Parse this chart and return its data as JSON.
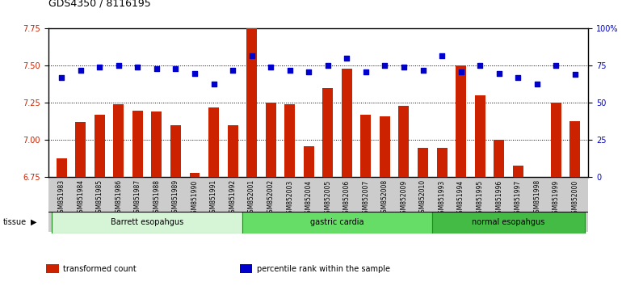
{
  "title": "GDS4350 / 8116195",
  "samples": [
    "GSM851983",
    "GSM851984",
    "GSM851985",
    "GSM851986",
    "GSM851987",
    "GSM851988",
    "GSM851989",
    "GSM851990",
    "GSM851991",
    "GSM851992",
    "GSM852001",
    "GSM852002",
    "GSM852003",
    "GSM852004",
    "GSM852005",
    "GSM852006",
    "GSM852007",
    "GSM852008",
    "GSM852009",
    "GSM852010",
    "GSM851993",
    "GSM851994",
    "GSM851995",
    "GSM851996",
    "GSM851997",
    "GSM851998",
    "GSM851999",
    "GSM852000"
  ],
  "transformed_counts": [
    6.88,
    7.12,
    7.17,
    7.24,
    7.2,
    7.19,
    7.1,
    6.78,
    7.22,
    7.1,
    7.75,
    7.25,
    7.24,
    6.96,
    7.35,
    7.48,
    7.17,
    7.16,
    7.23,
    6.95,
    6.95,
    7.5,
    7.3,
    7.0,
    6.83,
    6.75,
    7.25,
    7.13
  ],
  "percentile_ranks": [
    67,
    72,
    74,
    75,
    74,
    73,
    73,
    70,
    63,
    72,
    82,
    74,
    72,
    71,
    75,
    80,
    71,
    75,
    74,
    72,
    82,
    71,
    75,
    70,
    67,
    63,
    75,
    69
  ],
  "groups": [
    {
      "label": "Barrett esopahgus",
      "start": 0,
      "end": 9,
      "color": "#d6f5d6"
    },
    {
      "label": "gastric cardia",
      "start": 10,
      "end": 19,
      "color": "#66dd66"
    },
    {
      "label": "normal esopahgus",
      "start": 20,
      "end": 27,
      "color": "#44bb44"
    }
  ],
  "ylim_left": [
    6.75,
    7.75
  ],
  "ylim_right": [
    0,
    100
  ],
  "yticks_left": [
    6.75,
    7.0,
    7.25,
    7.5,
    7.75
  ],
  "yticks_right": [
    0,
    25,
    50,
    75,
    100
  ],
  "ytick_labels_right": [
    "0",
    "25",
    "50",
    "75",
    "100%"
  ],
  "bar_color": "#cc2200",
  "dot_color": "#0000cc",
  "bar_bottom": 6.75,
  "hlines": [
    7.0,
    7.25,
    7.5
  ],
  "xtick_bg": "#cccccc",
  "legend_items": [
    {
      "label": "transformed count",
      "color": "#cc2200"
    },
    {
      "label": "percentile rank within the sample",
      "color": "#0000cc"
    }
  ]
}
